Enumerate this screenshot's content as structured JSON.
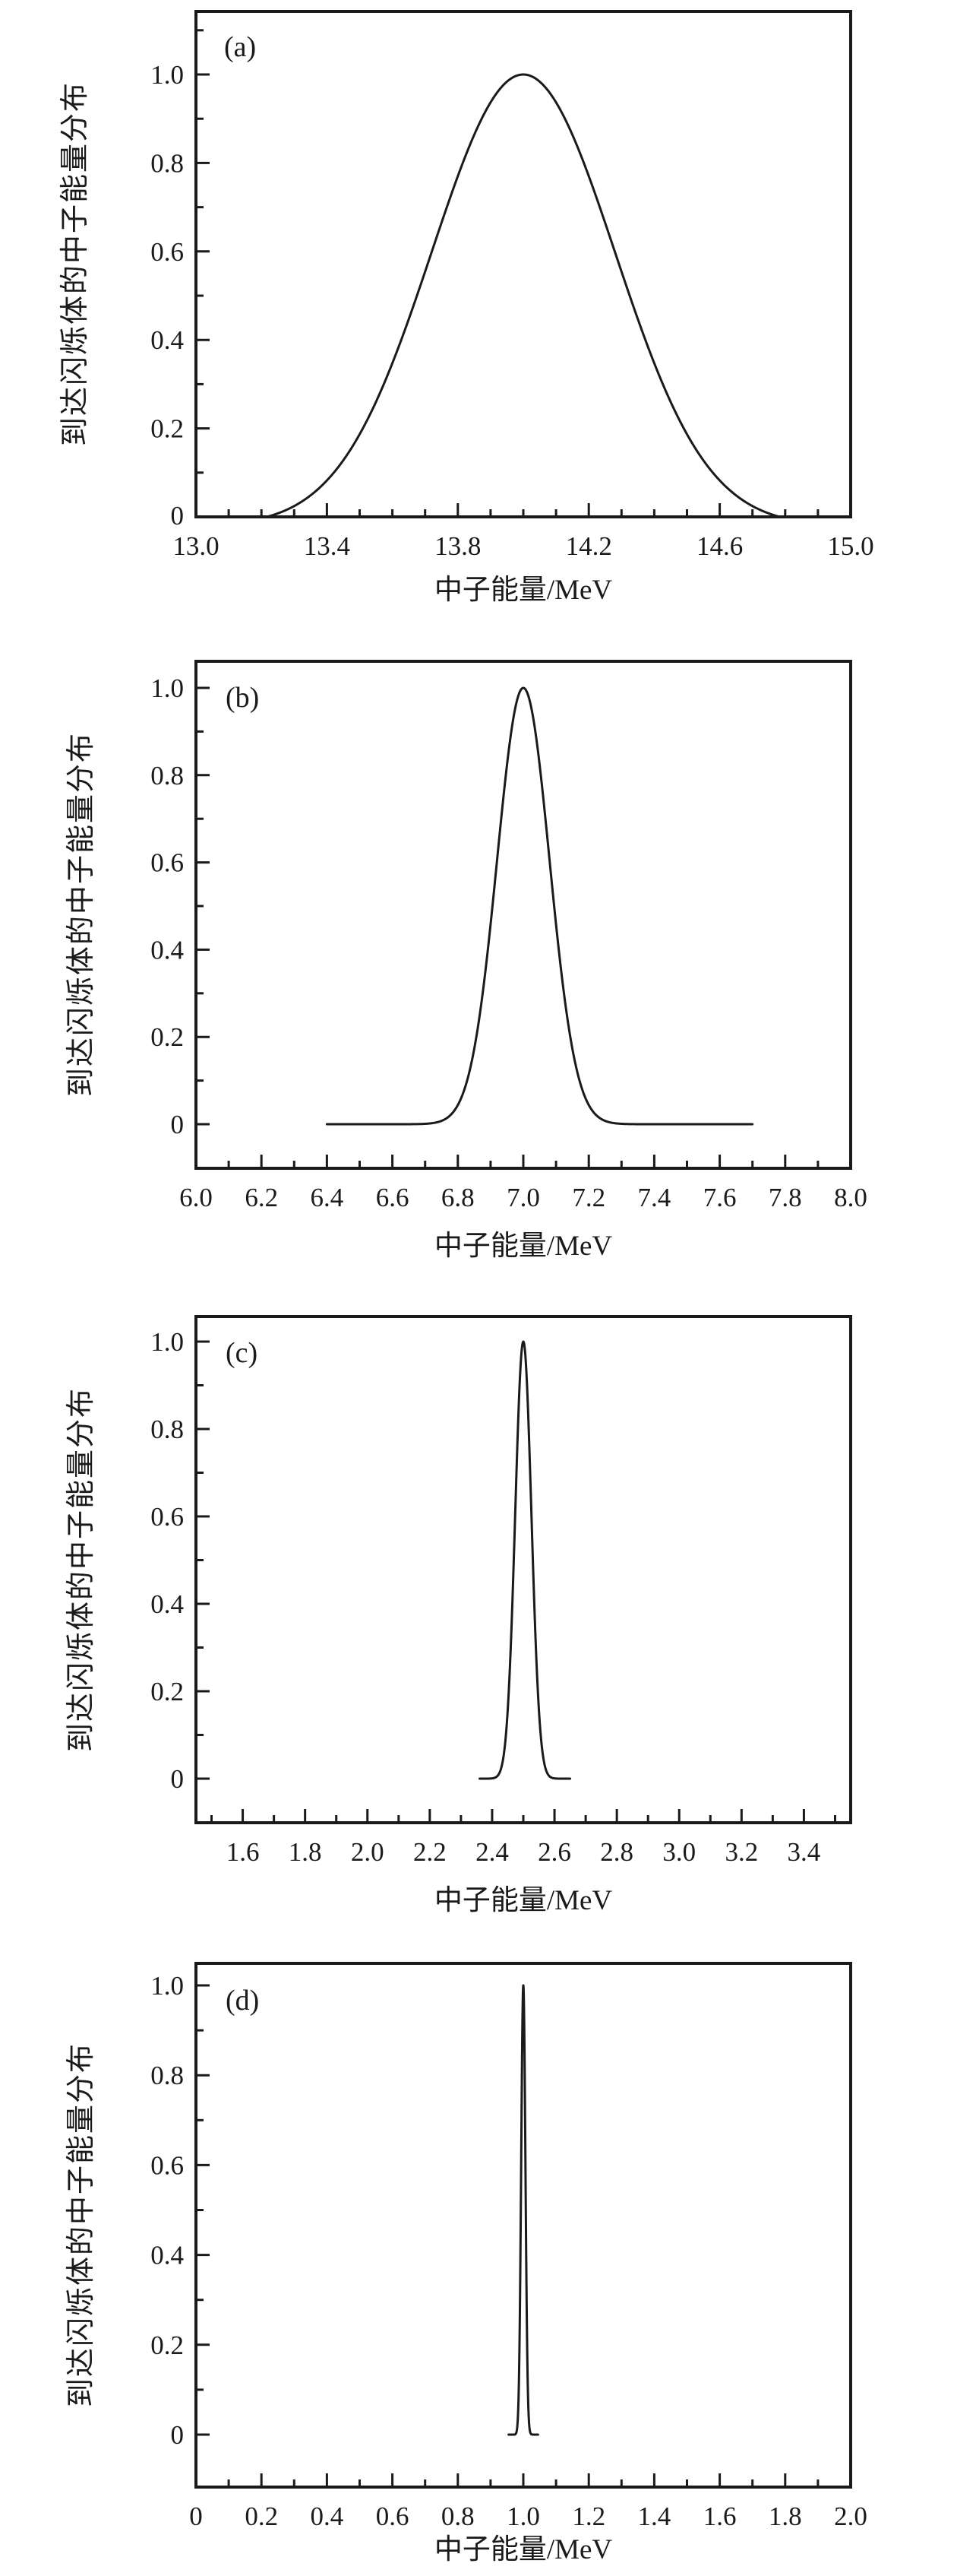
{
  "figure": {
    "background": "#ffffff",
    "line_color": "#1a1a1a",
    "n_panels": 4
  },
  "chart_data": [
    {
      "type": "line",
      "panel_label": "(a)",
      "x_axis_title": "中子能量/MeV",
      "y_axis_title": "到达闪烁体的中子能量分布",
      "x_range": [
        13.0,
        15.0
      ],
      "y_range": [
        0,
        1.143
      ],
      "grid": "off",
      "x_ticks": [
        {
          "v": 13.0,
          "label": "13.0"
        },
        {
          "v": 13.4,
          "label": "13.4"
        },
        {
          "v": 13.8,
          "label": "13.8"
        },
        {
          "v": 14.2,
          "label": "14.2"
        },
        {
          "v": 14.6,
          "label": "14.6"
        },
        {
          "v": 15.0,
          "label": "15.0"
        }
      ],
      "x_minor_ticks": [
        13.1,
        13.2,
        13.3,
        13.5,
        13.6,
        13.7,
        13.9,
        14.0,
        14.1,
        14.3,
        14.4,
        14.5,
        14.7,
        14.8,
        14.9
      ],
      "y_ticks": [
        {
          "v": 0,
          "label": "0"
        },
        {
          "v": 0.2,
          "label": "0.2"
        },
        {
          "v": 0.4,
          "label": "0.4"
        },
        {
          "v": 0.6,
          "label": "0.6"
        },
        {
          "v": 0.8,
          "label": "0.8"
        },
        {
          "v": 1.0,
          "label": "1.0"
        }
      ],
      "y_minor_ticks": [
        0.1,
        0.3,
        0.5,
        0.7,
        0.9,
        1.1
      ],
      "curve": {
        "shape": "gaussian",
        "peak_x": 14.0,
        "peak_y": 1.0,
        "sigma": 0.28,
        "fwhm": 0.67,
        "clip": 0.02,
        "x_start": 13.16,
        "x_end": 14.86,
        "baseline_y": 0,
        "zero_points": [
          13.25,
          14.8
        ]
      }
    },
    {
      "type": "line",
      "panel_label": "(b)",
      "x_axis_title": "中子能量/MeV",
      "y_axis_title": "到达闪烁体的中子能量分布",
      "x_range": [
        6.0,
        8.0
      ],
      "y_range": [
        -0.101,
        1.061
      ],
      "grid": "off",
      "x_ticks": [
        {
          "v": 6.0,
          "label": "6.0"
        },
        {
          "v": 6.2,
          "label": "6.2"
        },
        {
          "v": 6.4,
          "label": "6.4"
        },
        {
          "v": 6.6,
          "label": "6.6"
        },
        {
          "v": 6.8,
          "label": "6.8"
        },
        {
          "v": 7.0,
          "label": "7.0"
        },
        {
          "v": 7.2,
          "label": "7.2"
        },
        {
          "v": 7.4,
          "label": "7.4"
        },
        {
          "v": 7.6,
          "label": "7.6"
        },
        {
          "v": 7.8,
          "label": "7.8"
        },
        {
          "v": 8.0,
          "label": "8.0"
        }
      ],
      "x_minor_ticks": [
        6.1,
        6.3,
        6.5,
        6.7,
        6.9,
        7.1,
        7.3,
        7.5,
        7.7,
        7.9
      ],
      "y_ticks": [
        {
          "v": 0,
          "label": "0"
        },
        {
          "v": 0.2,
          "label": "0.2"
        },
        {
          "v": 0.4,
          "label": "0.4"
        },
        {
          "v": 0.6,
          "label": "0.6"
        },
        {
          "v": 0.8,
          "label": "0.8"
        },
        {
          "v": 1.0,
          "label": "1.0"
        }
      ],
      "y_minor_ticks": [
        0.1,
        0.3,
        0.5,
        0.7,
        0.9
      ],
      "curve": {
        "shape": "gaussian",
        "peak_x": 7.0,
        "peak_y": 1.0,
        "sigma": 0.08,
        "fwhm": 0.19,
        "clip": 0,
        "x_start": 6.4,
        "x_end": 7.7,
        "baseline_y": 0,
        "zero_points": [
          6.75,
          7.25
        ]
      }
    },
    {
      "type": "line",
      "panel_label": "(c)",
      "x_axis_title": "中子能量/MeV",
      "y_axis_title": "到达闪烁体的中子能量分布",
      "x_range": [
        1.45,
        3.55
      ],
      "y_range": [
        -0.101,
        1.057
      ],
      "grid": "off",
      "x_ticks": [
        {
          "v": 1.6,
          "label": "1.6"
        },
        {
          "v": 1.8,
          "label": "1.8"
        },
        {
          "v": 2.0,
          "label": "2.0"
        },
        {
          "v": 2.2,
          "label": "2.2"
        },
        {
          "v": 2.4,
          "label": "2.4"
        },
        {
          "v": 2.6,
          "label": "2.6"
        },
        {
          "v": 2.8,
          "label": "2.8"
        },
        {
          "v": 3.0,
          "label": "3.0"
        },
        {
          "v": 3.2,
          "label": "3.2"
        },
        {
          "v": 3.4,
          "label": "3.4"
        }
      ],
      "x_minor_ticks": [
        1.5,
        1.7,
        1.9,
        2.1,
        2.3,
        2.5,
        2.7,
        2.9,
        3.1,
        3.3,
        3.5
      ],
      "y_ticks": [
        {
          "v": 0,
          "label": "0"
        },
        {
          "v": 0.2,
          "label": "0.2"
        },
        {
          "v": 0.4,
          "label": "0.4"
        },
        {
          "v": 0.6,
          "label": "0.6"
        },
        {
          "v": 0.8,
          "label": "0.8"
        },
        {
          "v": 1.0,
          "label": "1.0"
        }
      ],
      "y_minor_ticks": [
        0.1,
        0.3,
        0.5,
        0.7,
        0.9
      ],
      "curve": {
        "shape": "gaussian",
        "peak_x": 2.5,
        "peak_y": 1.0,
        "sigma": 0.026,
        "fwhm": 0.06,
        "clip": 0,
        "x_start": 2.36,
        "x_end": 2.65,
        "baseline_y": 0,
        "zero_points": [
          2.44,
          2.56
        ]
      }
    },
    {
      "type": "line",
      "panel_label": "(d)",
      "x_axis_title": "中子能量/MeV",
      "y_axis_title": "到达闪烁体的中子能量分布",
      "x_range": [
        0.0,
        2.0
      ],
      "y_range": [
        -0.117,
        1.049
      ],
      "grid": "off",
      "x_ticks": [
        {
          "v": 0.0,
          "label": "0"
        },
        {
          "v": 0.2,
          "label": "0.2"
        },
        {
          "v": 0.4,
          "label": "0.4"
        },
        {
          "v": 0.6,
          "label": "0.6"
        },
        {
          "v": 0.8,
          "label": "0.8"
        },
        {
          "v": 1.0,
          "label": "1.0"
        },
        {
          "v": 1.2,
          "label": "1.2"
        },
        {
          "v": 1.4,
          "label": "1.4"
        },
        {
          "v": 1.6,
          "label": "1.6"
        },
        {
          "v": 1.8,
          "label": "1.8"
        },
        {
          "v": 2.0,
          "label": "2.0"
        }
      ],
      "x_minor_ticks": [
        0.1,
        0.3,
        0.5,
        0.7,
        0.9,
        1.1,
        1.3,
        1.5,
        1.7,
        1.9
      ],
      "y_ticks": [
        {
          "v": 0,
          "label": "0"
        },
        {
          "v": 0.2,
          "label": "0.2"
        },
        {
          "v": 0.4,
          "label": "0.4"
        },
        {
          "v": 0.6,
          "label": "0.6"
        },
        {
          "v": 0.8,
          "label": "0.8"
        },
        {
          "v": 1.0,
          "label": "1.0"
        }
      ],
      "y_minor_ticks": [
        0.1,
        0.3,
        0.5,
        0.7,
        0.9
      ],
      "curve": {
        "shape": "gaussian",
        "peak_x": 1.0,
        "peak_y": 1.0,
        "sigma": 0.0065,
        "fwhm": 0.015,
        "clip": 0,
        "x_start": 0.955,
        "x_end": 1.045,
        "baseline_y": 0,
        "zero_points": [
          0.985,
          1.015
        ]
      }
    }
  ]
}
